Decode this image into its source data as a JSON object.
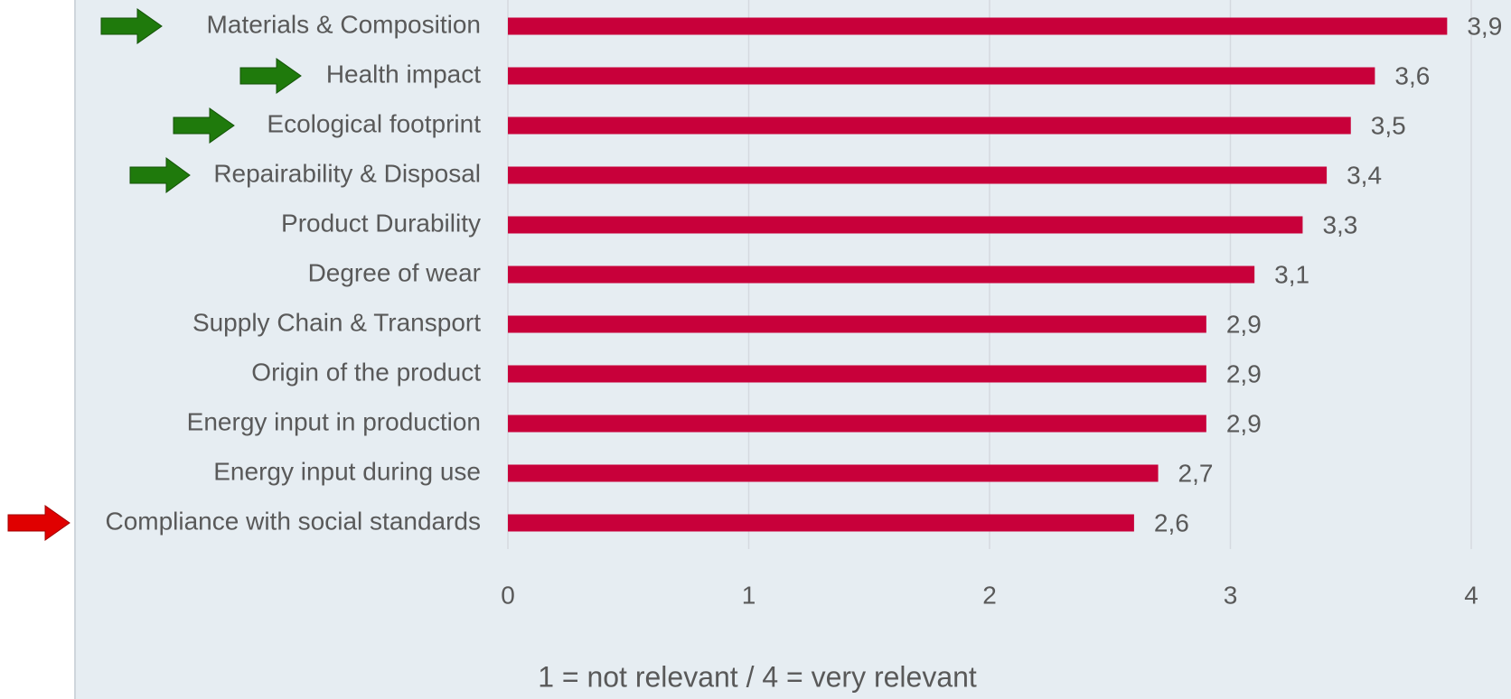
{
  "chart_data": {
    "type": "hbar",
    "categories": [
      "Materials & Composition",
      "Health impact",
      "Ecological footprint",
      "Repairability & Disposal",
      "Product Durability",
      "Degree of wear",
      "Supply Chain & Transport",
      "Origin of the product",
      "Energy input in production",
      "Energy input during use",
      "Compliance with social standards"
    ],
    "values": [
      3.9,
      3.6,
      3.5,
      3.4,
      3.3,
      3.1,
      2.9,
      2.9,
      2.9,
      2.7,
      2.6
    ],
    "value_labels": [
      "3,9",
      "3,6",
      "3,5",
      "3,4",
      "3,3",
      "3,1",
      "2,9",
      "2,9",
      "2,9",
      "2,7",
      "2,6"
    ],
    "color": "#c8003a",
    "xlim": [
      0,
      4
    ],
    "xticks": [
      0,
      1,
      2,
      3,
      4
    ],
    "grid": true,
    "xlabel": "1 = not relevant / 4 = very relevant"
  }
}
